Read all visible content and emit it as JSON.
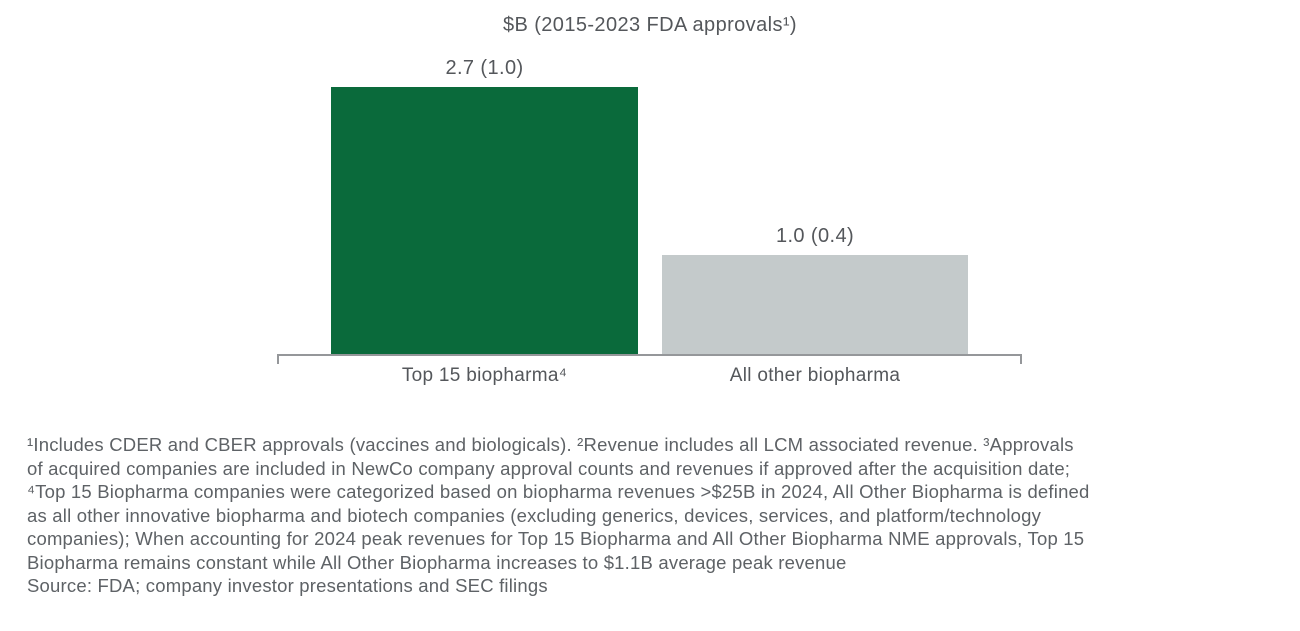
{
  "chart": {
    "title": "$B (2015-2023 FDA approvals¹)"
  },
  "chart_data": {
    "type": "bar",
    "title": "$B (2015-2023 FDA approvals¹)",
    "categories": [
      "Top 15 biopharma⁴",
      "All other biopharma"
    ],
    "values": [
      2.7,
      1.0
    ],
    "values_in_parentheses": [
      1.0,
      0.4
    ],
    "bar_labels": [
      "2.7 (1.0)",
      "1.0 (0.4)"
    ],
    "colors": [
      "#0a6a3b",
      "#c4cacb"
    ],
    "xlabel": "",
    "ylabel": "",
    "ylim": [
      0,
      2.8
    ],
    "grid": false,
    "legend": "none",
    "value_axis_visible": false,
    "baseline_style": "bracket-with-end-ticks"
  },
  "footnotes": {
    "lines": [
      "¹Includes CDER and CBER approvals (vaccines and biologicals). ²Revenue includes all LCM associated revenue. ³Approvals",
      "of acquired companies are included in NewCo company approval counts and revenues if approved after the acquisition date;",
      "⁴Top 15 Biopharma companies were categorized based on biopharma revenues >$25B in 2024, All Other Biopharma is defined",
      "as all other innovative biopharma and biotech companies (excluding generics, devices, services, and platform/technology",
      "companies); When accounting for 2024 peak revenues for Top 15 Biopharma and All Other Biopharma NME approvals, Top 15",
      "Biopharma remains constant while All Other Biopharma increases to $1.1B average peak revenue",
      "Source: FDA; company investor presentations and SEC filings"
    ]
  }
}
